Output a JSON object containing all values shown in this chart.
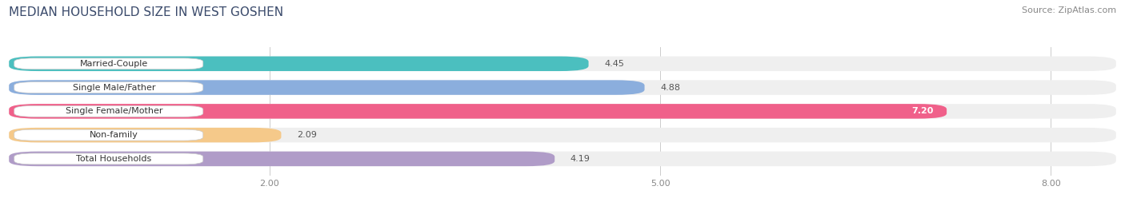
{
  "title": "MEDIAN HOUSEHOLD SIZE IN WEST GOSHEN",
  "source": "Source: ZipAtlas.com",
  "categories": [
    "Married-Couple",
    "Single Male/Father",
    "Single Female/Mother",
    "Non-family",
    "Total Households"
  ],
  "values": [
    4.45,
    4.88,
    7.2,
    2.09,
    4.19
  ],
  "bar_colors": [
    "#4BBFBF",
    "#8BAEDD",
    "#F0608A",
    "#F5C98A",
    "#B09CC8"
  ],
  "bg_colors": [
    "#EFEFEF",
    "#EFEFEF",
    "#EFEFEF",
    "#EFEFEF",
    "#EFEFEF"
  ],
  "xlim": [
    0,
    8.5
  ],
  "xticks": [
    2.0,
    5.0,
    8.0
  ],
  "title_fontsize": 11,
  "source_fontsize": 8,
  "label_fontsize": 8,
  "value_fontsize": 8,
  "bar_height": 0.62,
  "bar_gap": 0.38,
  "background_color": "#ffffff",
  "title_color": "#3a4a6b",
  "source_color": "#888888",
  "label_color": "#333333",
  "value_color_outside": "#555555",
  "value_color_inside": "#ffffff"
}
